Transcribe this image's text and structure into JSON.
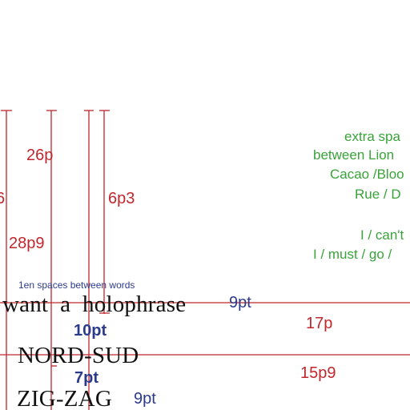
{
  "colors": {
    "guide_red": "#c0272d",
    "label_red": "#c0272d",
    "label_blue": "#2c3a8c",
    "label_green": "#3aa23a",
    "sample_text": "#111111"
  },
  "measurements": {
    "m_26p": "26p",
    "m_6": "6",
    "m_6p3": "6p3",
    "m_28p9": "28p9",
    "m_17p": "17p",
    "m_15p9": "15p9",
    "m_9pt_a": "9pt",
    "m_9pt_b": "9pt",
    "m_10pt": "10pt",
    "m_7pt": "7pt"
  },
  "note": {
    "spaces": "1en spaces between words"
  },
  "sample": {
    "line1": "want  a  holophrase",
    "line2": "NORD-SUD",
    "line3": "ZIG-ZAG"
  },
  "green_notes": [
    "extra spa",
    "between Lion",
    "Cacao /Bloo",
    "Rue / D",
    "",
    "I / can't",
    "I / must / go /"
  ]
}
